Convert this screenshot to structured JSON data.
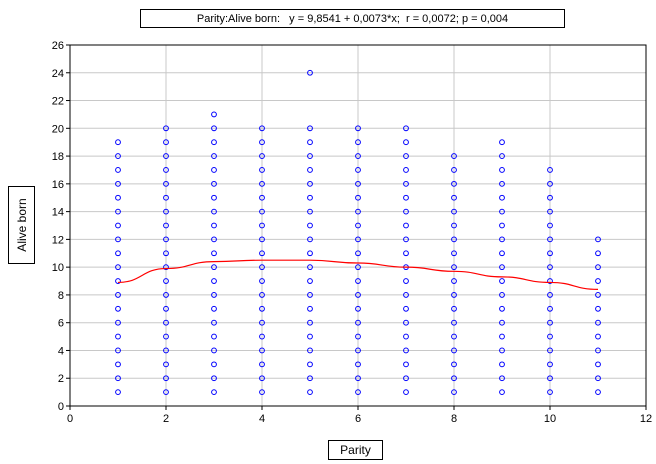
{
  "chart_data": {
    "type": "scatter",
    "title": "Parity:Alive born:   y = 9,8541 + 0,0073*x;  r = 0,0072; p = 0,004",
    "xlabel": "Parity",
    "ylabel": "Alive born",
    "xlim": [
      0,
      12
    ],
    "ylim": [
      0,
      26
    ],
    "xticks": [
      0,
      2,
      4,
      6,
      8,
      10,
      12
    ],
    "yticks": [
      0,
      2,
      4,
      6,
      8,
      10,
      12,
      14,
      16,
      18,
      20,
      22,
      24,
      26
    ],
    "grid": true,
    "point_color": "#0000ff",
    "fit_color": "#ff0000",
    "points_by_x": [
      {
        "x": 1,
        "y_max": 19
      },
      {
        "x": 2,
        "y_max": 20
      },
      {
        "x": 3,
        "y_max": 21
      },
      {
        "x": 4,
        "y_max": 20
      },
      {
        "x": 5,
        "y_max": 20,
        "extra_y": [
          24
        ]
      },
      {
        "x": 6,
        "y_max": 20
      },
      {
        "x": 7,
        "y_max": 20
      },
      {
        "x": 8,
        "y_max": 18
      },
      {
        "x": 9,
        "y_max": 19
      },
      {
        "x": 10,
        "y_max": 17
      },
      {
        "x": 11,
        "y_max": 12
      }
    ],
    "fit_curve": {
      "x": [
        1,
        2,
        3,
        4,
        5,
        6,
        7,
        8,
        9,
        10,
        11
      ],
      "y": [
        8.9,
        9.9,
        10.4,
        10.5,
        10.5,
        10.3,
        10.0,
        9.7,
        9.3,
        8.9,
        8.4
      ]
    }
  }
}
